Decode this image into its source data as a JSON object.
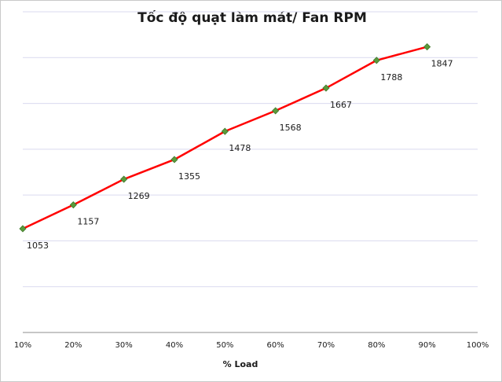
{
  "chart_data": {
    "type": "line",
    "title": "Tốc độ quạt làm mát/ Fan RPM",
    "xlabel": "% Load",
    "ylabel": "",
    "x_tick_labels": [
      "10%",
      "20%",
      "30%",
      "40%",
      "50%",
      "60%",
      "70%",
      "80%",
      "90%",
      "100%"
    ],
    "categories": [
      "10%",
      "20%",
      "30%",
      "40%",
      "50%",
      "60%",
      "70%",
      "80%",
      "90%"
    ],
    "series": [
      {
        "values": [
          1053,
          1157,
          1269,
          1355,
          1478,
          1568,
          1667,
          1788,
          1847
        ]
      }
    ],
    "ylim": [
      600,
      2000
    ],
    "y_tick_labels_shown": false,
    "grid": true,
    "legend": "none",
    "data_labels": "below",
    "colors": {
      "line": "#ff0000",
      "marker": "#5b9a3c",
      "grid": "#d9d9ef"
    }
  }
}
